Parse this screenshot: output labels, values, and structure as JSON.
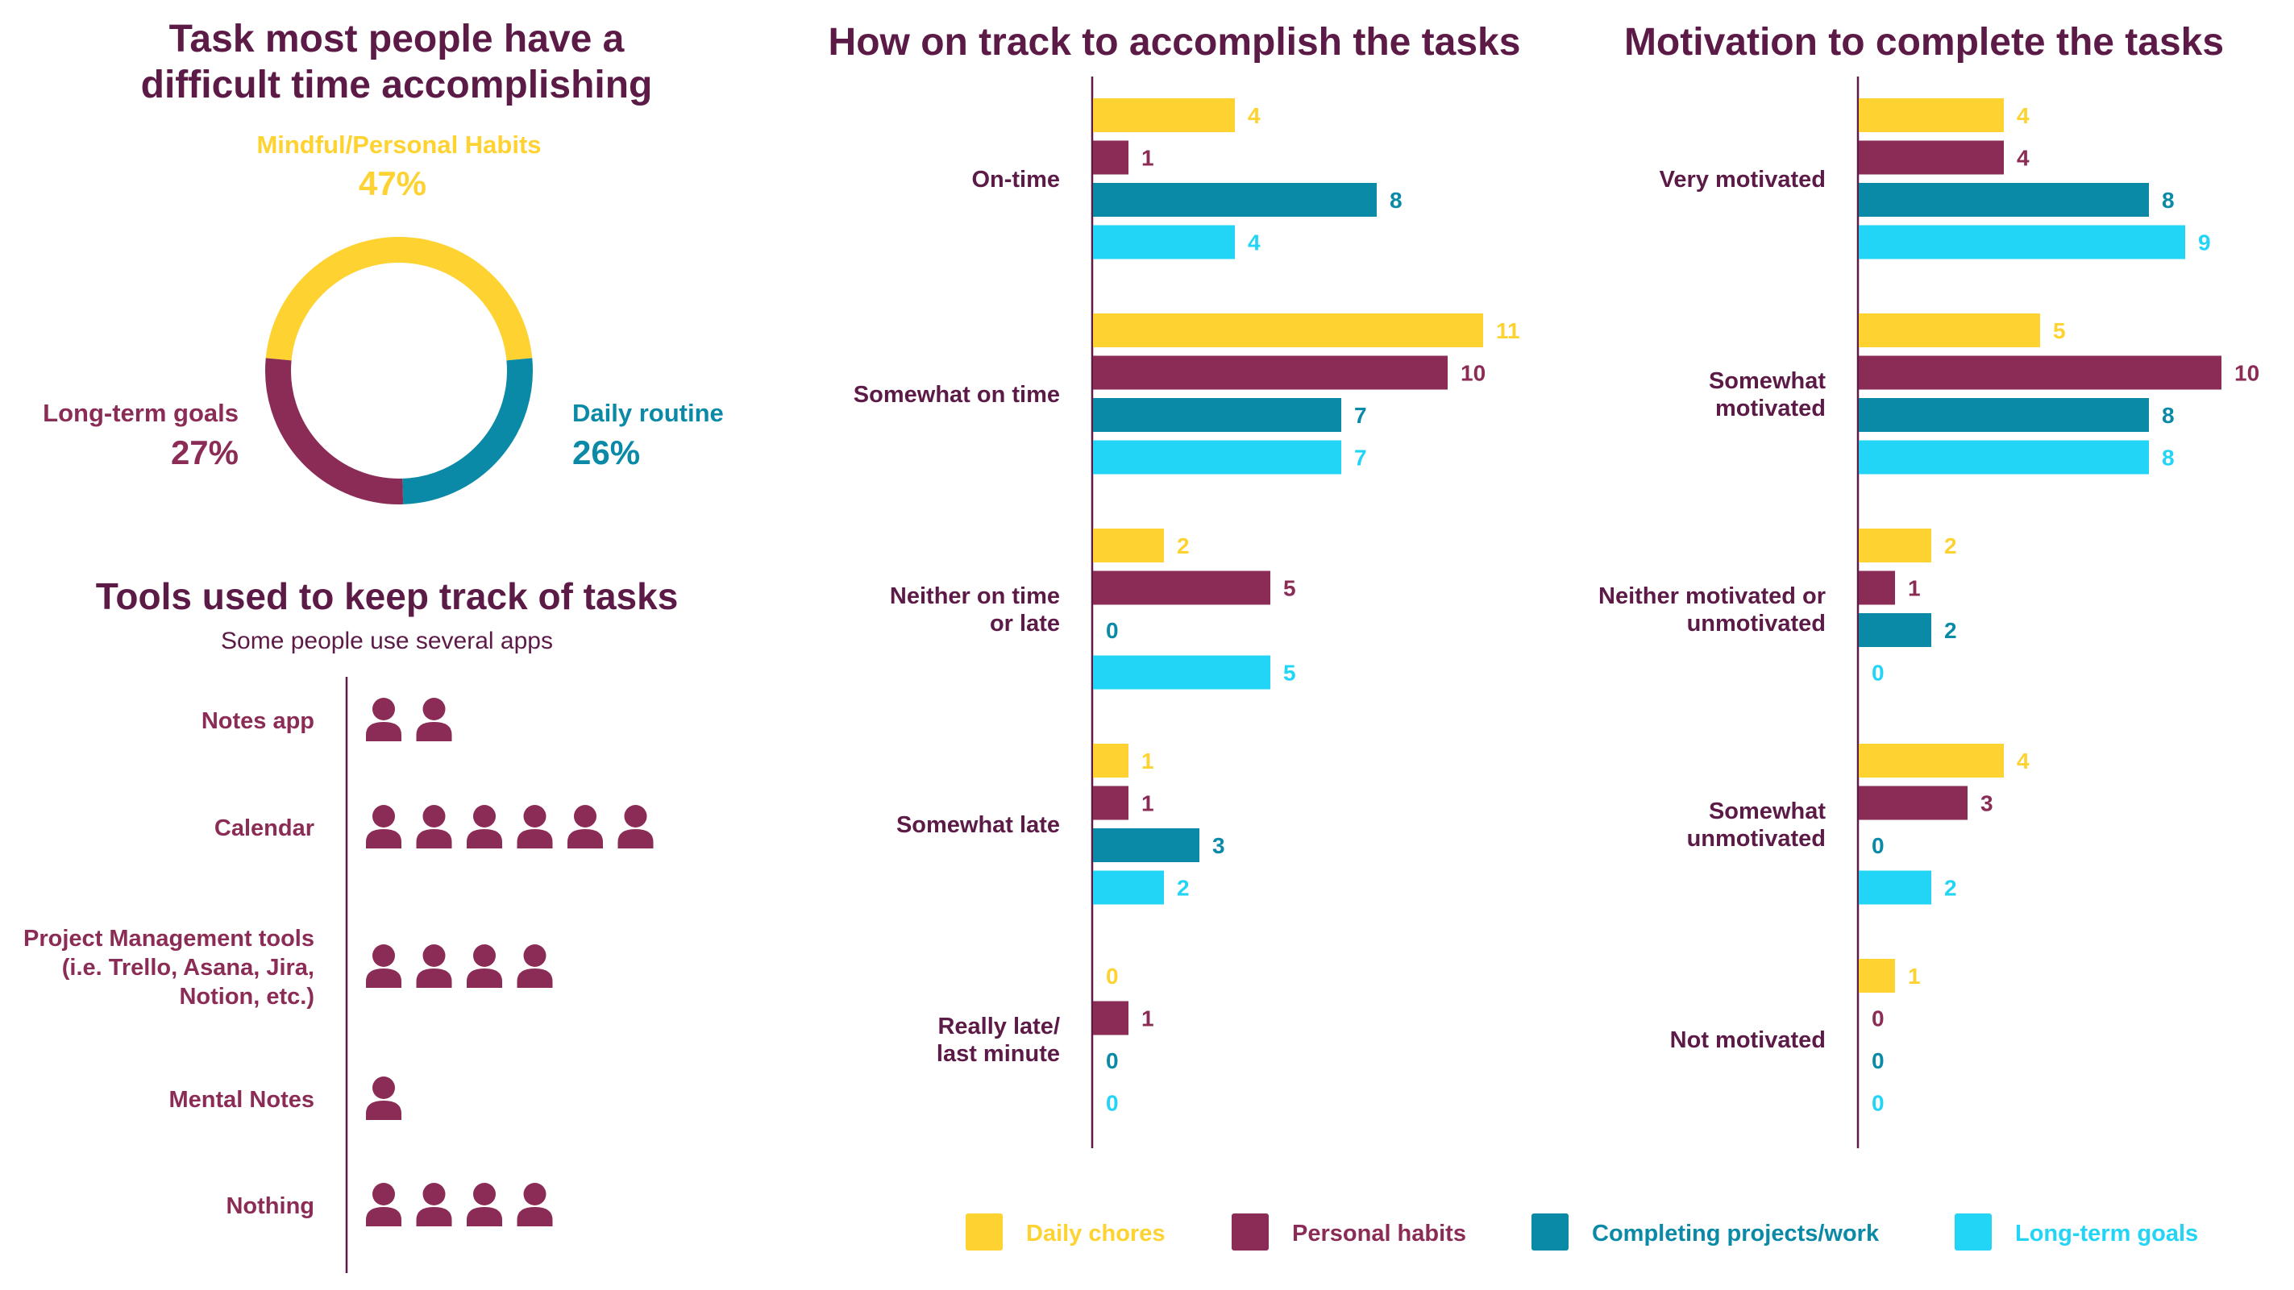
{
  "colors": {
    "title": "#5c1a47",
    "daily_chores": "#fdd231",
    "personal_habits": "#8b2c56",
    "completing_projects": "#0a8aa6",
    "long_term_goals": "#22d4f6",
    "axis": "#5c1a47"
  },
  "icons": {
    "person": "person-icon"
  },
  "chart_data": [
    {
      "type": "pie",
      "title": "Task most people have a difficult time accomplishing",
      "title_lines": [
        "Task most people have a",
        "difficult time accomplishing"
      ],
      "slices": [
        {
          "label": "Mindful/Personal Habits",
          "value": 47,
          "display": "47%",
          "color": "#fdd231"
        },
        {
          "label": "Daily routine",
          "value": 26,
          "display": "26%",
          "color": "#0a8aa6"
        },
        {
          "label": "Long-term goals",
          "value": 27,
          "display": "27%",
          "color": "#8b2c56"
        }
      ]
    },
    {
      "type": "bar",
      "orientation": "horizontal",
      "title": "How on track to accomplish the tasks",
      "categories": [
        "On-time",
        "Somewhat on time",
        "Neither on time or late",
        "Somewhat late",
        "Really late/ last minute"
      ],
      "category_lines": [
        [
          "On-time"
        ],
        [
          "Somewhat on time"
        ],
        [
          "Neither on time",
          "or late"
        ],
        [
          "Somewhat late"
        ],
        [
          "Really late/",
          "last minute"
        ]
      ],
      "series": [
        {
          "name": "Daily chores",
          "color": "#fdd231",
          "values": [
            4,
            11,
            2,
            1,
            0
          ]
        },
        {
          "name": "Personal habits",
          "color": "#8b2c56",
          "values": [
            1,
            10,
            5,
            1,
            1
          ]
        },
        {
          "name": "Completing projects/work",
          "color": "#0a8aa6",
          "values": [
            8,
            7,
            0,
            3,
            0
          ]
        },
        {
          "name": "Long-term goals",
          "color": "#22d4f6",
          "values": [
            4,
            7,
            5,
            2,
            0
          ]
        }
      ],
      "xlim": [
        0,
        11
      ]
    },
    {
      "type": "bar",
      "orientation": "horizontal",
      "title": "Motivation to complete the tasks",
      "categories": [
        "Very motivated",
        "Somewhat motivated",
        "Neither motivated or unmotivated",
        "Somewhat unmotivated",
        "Not motivated"
      ],
      "category_lines": [
        [
          "Very motivated"
        ],
        [
          "Somewhat",
          "motivated"
        ],
        [
          "Neither motivated or",
          "unmotivated"
        ],
        [
          "Somewhat",
          "unmotivated"
        ],
        [
          "Not motivated"
        ]
      ],
      "series": [
        {
          "name": "Daily chores",
          "color": "#fdd231",
          "values": [
            4,
            5,
            2,
            4,
            1
          ]
        },
        {
          "name": "Personal habits",
          "color": "#8b2c56",
          "values": [
            4,
            10,
            1,
            3,
            0
          ]
        },
        {
          "name": "Completing projects/work",
          "color": "#0a8aa6",
          "values": [
            8,
            8,
            2,
            0,
            0
          ]
        },
        {
          "name": "Long-term goals",
          "color": "#22d4f6",
          "values": [
            9,
            8,
            0,
            2,
            0
          ]
        }
      ],
      "xlim": [
        0,
        10
      ]
    },
    {
      "type": "pictograph",
      "title": "Tools used to keep track of tasks",
      "subtitle": "Some people use several apps",
      "categories": [
        "Notes app",
        "Calendar",
        "Project Management tools (i.e. Trello, Asana, Jira, Notion, etc.)",
        "Mental Notes",
        "Nothing"
      ],
      "category_lines": [
        [
          "Notes app"
        ],
        [
          "Calendar"
        ],
        [
          "Project Management tools",
          "(i.e. Trello, Asana, Jira,",
          "Notion, etc.)"
        ],
        [
          "Mental Notes"
        ],
        [
          "Nothing"
        ]
      ],
      "values": [
        2,
        6,
        4,
        1,
        4
      ],
      "color": "#8b2c56"
    }
  ],
  "legend": [
    {
      "label": "Daily chores",
      "color": "#fdd231"
    },
    {
      "label": "Personal habits",
      "color": "#8b2c56"
    },
    {
      "label": "Completing projects/work",
      "color": "#0a8aa6"
    },
    {
      "label": "Long-term goals",
      "color": "#22d4f6"
    }
  ]
}
